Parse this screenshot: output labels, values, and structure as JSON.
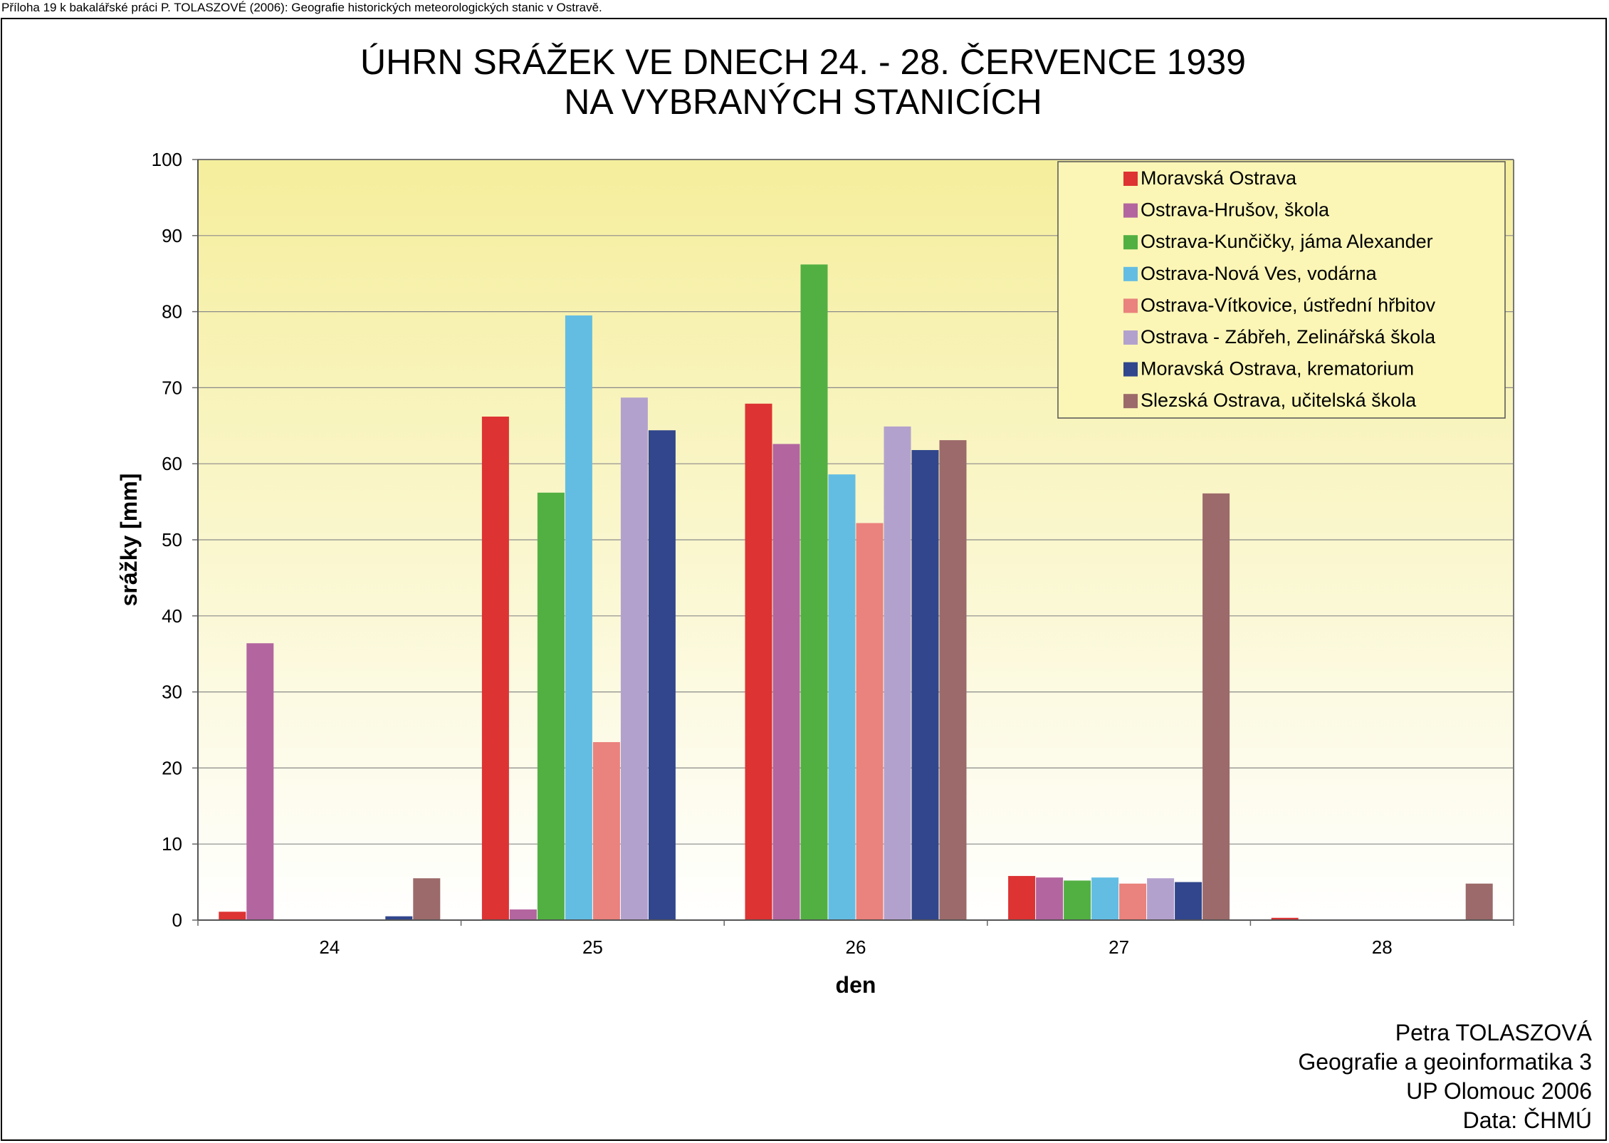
{
  "header_note": "Příloha 19 k bakalářské práci P. TOLASZOVÉ (2006): Geografie historických meteorologických stanic v Ostravě.",
  "credits": [
    "Petra TOLASZOVÁ",
    "Geografie a geoinformatika 3",
    "UP Olomouc 2006",
    "Data: ČHMÚ"
  ],
  "chart_data": {
    "type": "bar",
    "title": [
      "ÚHRN SRÁŽEK VE DNECH 24. - 28. ČERVENCE 1939",
      "NA VYBRANÝCH STANICÍCH"
    ],
    "xlabel": "den",
    "ylabel": "srážky [mm]",
    "ylim": [
      0,
      100
    ],
    "yticks": [
      0,
      10,
      20,
      30,
      40,
      50,
      60,
      70,
      80,
      90,
      100
    ],
    "categories": [
      "24",
      "25",
      "26",
      "27",
      "28"
    ],
    "grid": true,
    "legend": "top-right",
    "series": [
      {
        "name": "Moravská Ostrava",
        "color": "#dd3333",
        "values": [
          1.1,
          66.2,
          67.9,
          5.8,
          0.3
        ]
      },
      {
        "name": "Ostrava-Hrušov, škola",
        "color": "#b3659f",
        "values": [
          36.4,
          1.4,
          62.6,
          5.6,
          0
        ]
      },
      {
        "name": "Ostrava-Kunčičky, jáma Alexander",
        "color": "#52b043",
        "values": [
          0,
          56.2,
          86.2,
          5.2,
          0
        ]
      },
      {
        "name": "Ostrava-Nová Ves, vodárna",
        "color": "#63bde3",
        "values": [
          0,
          79.5,
          58.6,
          5.6,
          0
        ]
      },
      {
        "name": "Ostrava-Vítkovice, ústřední hřbitov",
        "color": "#ea827d",
        "values": [
          0,
          23.4,
          52.2,
          4.8,
          0
        ]
      },
      {
        "name": "Ostrava - Zábřeh, Zelinářská škola",
        "color": "#b3a1cd",
        "values": [
          0,
          68.7,
          64.9,
          5.5,
          0
        ]
      },
      {
        "name": "Moravská Ostrava, krematorium",
        "color": "#31468c",
        "values": [
          0.5,
          64.4,
          61.8,
          5.0,
          0
        ]
      },
      {
        "name": "Slezská Ostrava, učitelská škola",
        "color": "#9c6a6a",
        "values": [
          5.5,
          0,
          63.1,
          56.1,
          4.8
        ]
      }
    ]
  }
}
